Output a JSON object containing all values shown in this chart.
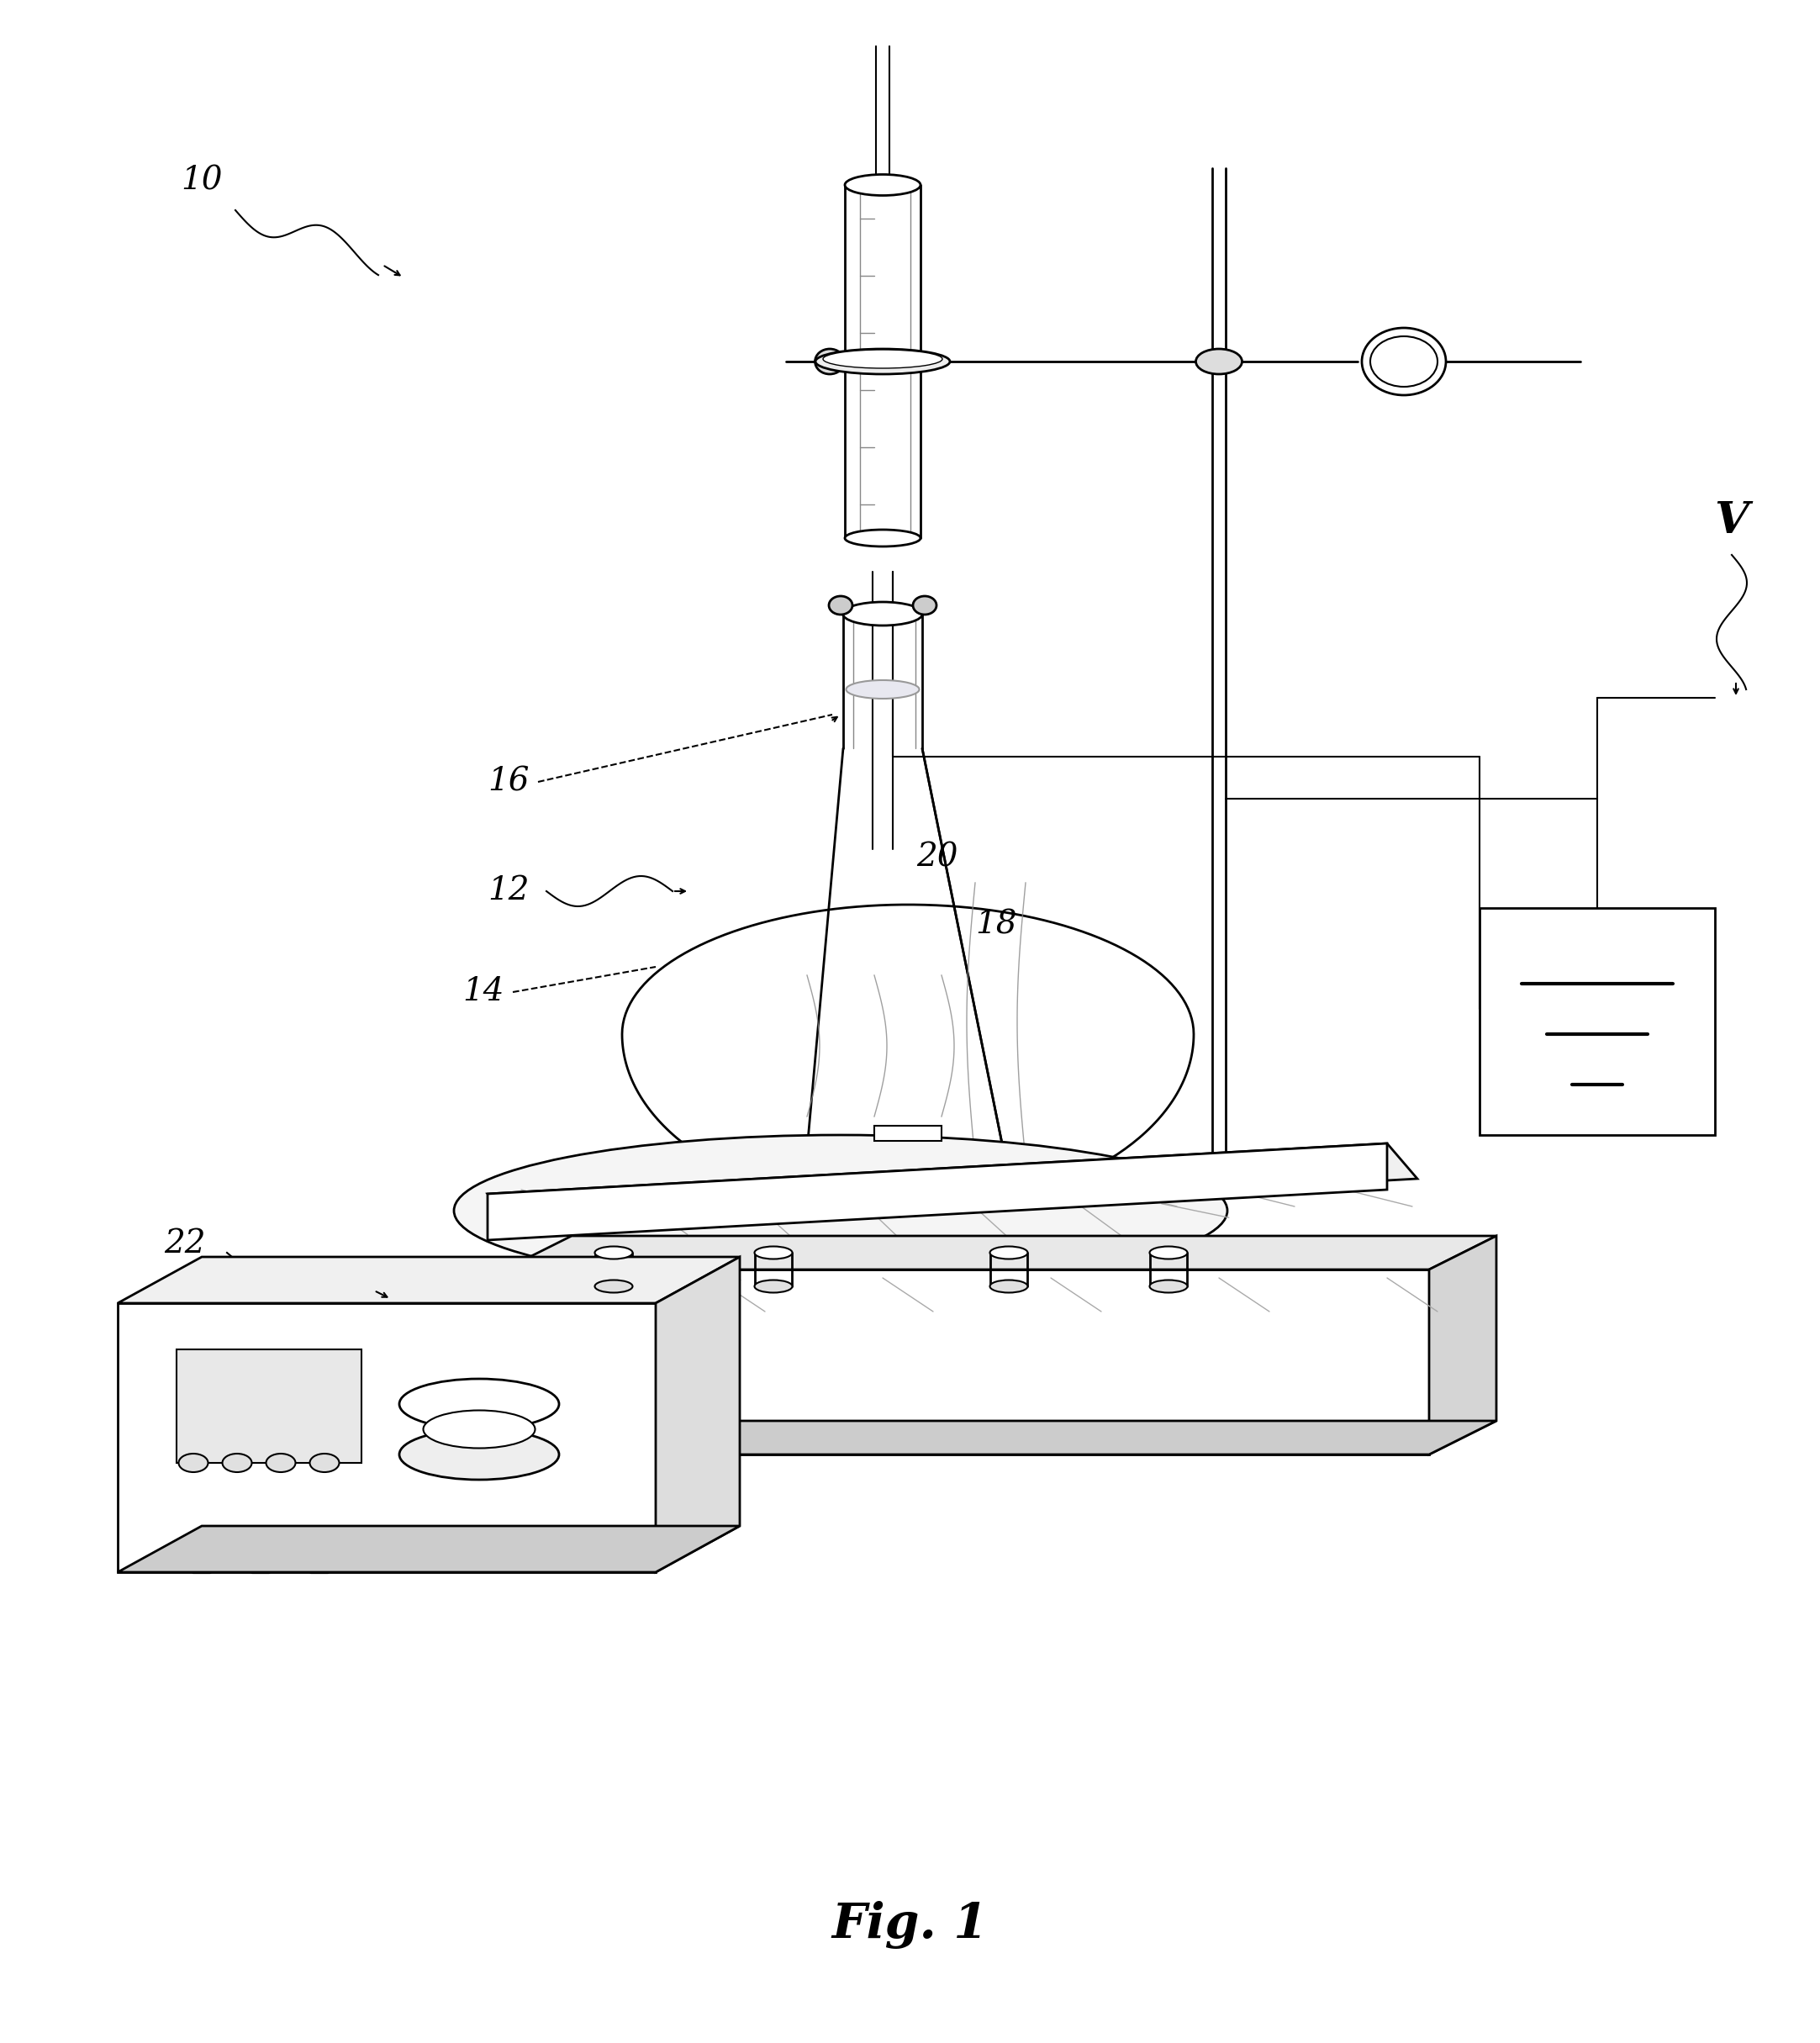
{
  "title": "Fig. 1",
  "title_fontsize": 42,
  "background_color": "#ffffff",
  "line_color": "#000000",
  "label_fontsize": 28,
  "lw_thick": 3.0,
  "lw_med": 2.0,
  "lw_thin": 1.5,
  "lw_hair": 1.0
}
